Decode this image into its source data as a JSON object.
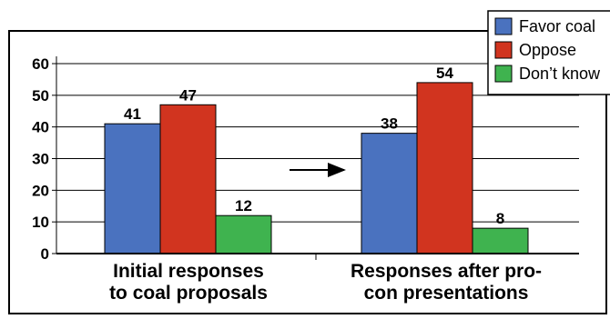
{
  "chart_data": {
    "type": "bar",
    "categories": [
      [
        "Initial responses",
        "to coal proposals"
      ],
      [
        "Responses after pro-",
        "con presentations"
      ]
    ],
    "series": [
      {
        "name": "Favor coal",
        "values": [
          41,
          38
        ],
        "color": "#4a72bf"
      },
      {
        "name": "Oppose",
        "values": [
          47,
          54
        ],
        "color": "#d1341f"
      },
      {
        "name": "Don’t know",
        "values": [
          12,
          8
        ],
        "color": "#3fb34f"
      }
    ],
    "data_labels": [
      [
        "41",
        "47",
        "12"
      ],
      [
        "38",
        "54",
        "8"
      ]
    ],
    "yticks": [
      0,
      10,
      20,
      30,
      40,
      50,
      60
    ],
    "ylim": [
      0,
      60
    ],
    "grid": true,
    "legend_position": "top-right",
    "annotation": "arrow between the two groups pointing right",
    "title": "",
    "xlabel": "",
    "ylabel": ""
  }
}
